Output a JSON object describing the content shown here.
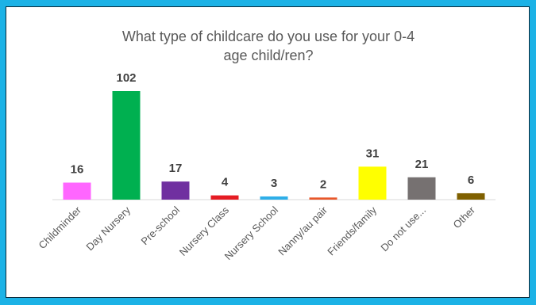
{
  "page": {
    "background_color": "#1CB2E6"
  },
  "chart_data": {
    "type": "bar",
    "title": "What type of childcare do you use for your 0-4 age child/ren?",
    "title_lines": [
      "What type of childcare do you use for your 0-4",
      "age child/ren?"
    ],
    "xlabel": "",
    "ylabel": "",
    "ylim": [
      0,
      102
    ],
    "grid": false,
    "legend": "none",
    "categories": [
      "Childminder",
      "Day Nursery",
      "Pre-school",
      "Nursery Class",
      "Nursery School",
      "Nanny/au pair",
      "Friends/family",
      "Do not use...",
      "Other"
    ],
    "values": [
      16,
      102,
      17,
      4,
      3,
      2,
      31,
      21,
      6
    ],
    "colors": [
      "#FF66FF",
      "#00B050",
      "#7030A0",
      "#E51C23",
      "#2EAEE8",
      "#E8572A",
      "#FFFF00",
      "#767171",
      "#7F6000"
    ]
  }
}
